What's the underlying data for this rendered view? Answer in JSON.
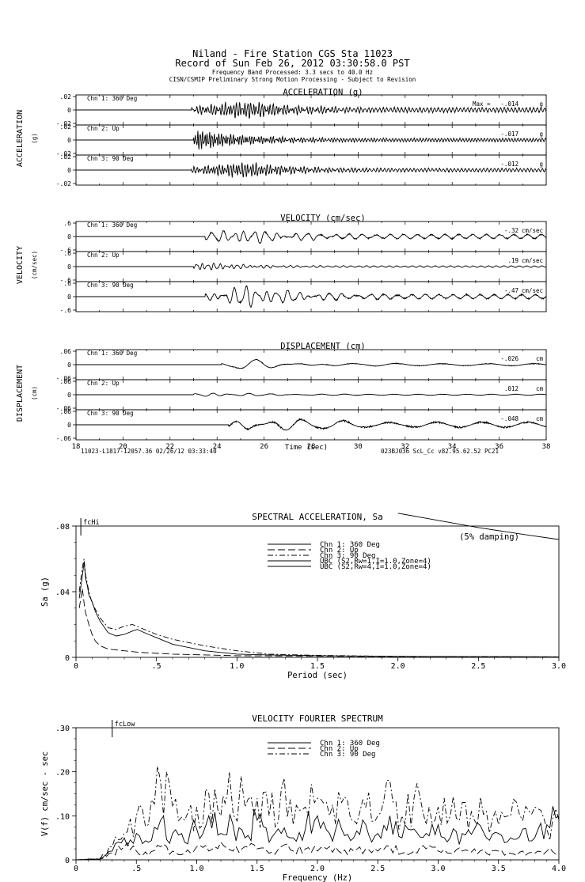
{
  "header": {
    "title_line1": "Niland - Fire Station     CGS Sta 11023",
    "title_line2": "Record of Sun Feb 26, 2012 03:30:58.0 PST",
    "band_line": "Frequency Band Processed: 3.3 secs to 40.0 Hz",
    "processing_line": "CISN/CSMIP Preliminary Strong Motion Processing - Subject to Revision"
  },
  "footer_left": "11023-L1817-12057.36 02/26/12 03:33:40",
  "footer_right": "023BJ036  ScL_Cc  v82.95.62.52  PC21",
  "chart_data": [
    {
      "type": "line",
      "title": "ACCELERATION (g)",
      "ylabel_main": "ACCELERATION",
      "ylabel_unit": "(g)",
      "xlim": [
        18,
        38
      ],
      "x_ticks": [
        18,
        20,
        22,
        24,
        26,
        28,
        30,
        32,
        34,
        36,
        38
      ],
      "unit": "g",
      "max_prefix": "Max =",
      "series": [
        {
          "name": "Chn 1: 360 Deg",
          "max": "-.014",
          "ylim": [
            -0.02,
            0.02
          ],
          "ytick_labels": [
            ".02",
            "0",
            "-.02"
          ],
          "onset": 22.9,
          "peak_t": 25.3,
          "envelope": 0.012,
          "noise": 0.004,
          "dom_period": 0.12
        },
        {
          "name": "Chn 2: Up",
          "max": "-.017",
          "ylim": [
            -0.02,
            0.02
          ],
          "ytick_labels": [
            ".02",
            "0",
            "-.02"
          ],
          "onset": 23.0,
          "peak_t": 23.1,
          "envelope": 0.015,
          "noise": 0.003,
          "dom_period": 0.1
        },
        {
          "name": "Chn 3: 90 Deg",
          "max": "-.012",
          "ylim": [
            -0.02,
            0.02
          ],
          "ytick_labels": [
            ".02",
            "0",
            "-.02"
          ],
          "onset": 22.9,
          "peak_t": 25.2,
          "envelope": 0.011,
          "noise": 0.003,
          "dom_period": 0.12
        }
      ]
    },
    {
      "type": "line",
      "title": "VELOCITY (cm/sec)",
      "ylabel_main": "VELOCITY",
      "ylabel_unit": "(cm/sec)",
      "xlim": [
        18,
        38
      ],
      "unit": "cm/sec",
      "series": [
        {
          "name": "Chn 1: 360 Deg",
          "max": "-.32",
          "ylim": [
            -0.6,
            0.6
          ],
          "ytick_labels": [
            ".6",
            "0",
            "-.6"
          ],
          "onset": 23.5,
          "peak_t": 25.0,
          "envelope": 0.32,
          "noise": 0.12,
          "dom_period": 0.45
        },
        {
          "name": "Chn 2: Up",
          "max": ".19",
          "ylim": [
            -0.6,
            0.6
          ],
          "ytick_labels": [
            ".6",
            "0",
            "-.6"
          ],
          "onset": 23.0,
          "peak_t": 23.1,
          "envelope": 0.19,
          "noise": 0.04,
          "dom_period": 0.25
        },
        {
          "name": "Chn 3: 90 Deg",
          "max": "-.47",
          "ylim": [
            -0.6,
            0.6
          ],
          "ytick_labels": [
            ".6",
            "0",
            "-.6"
          ],
          "onset": 23.5,
          "peak_t": 25.3,
          "envelope": 0.47,
          "noise": 0.12,
          "dom_period": 0.45
        }
      ]
    },
    {
      "type": "line",
      "title": "DISPLACEMENT (cm)",
      "ylabel_main": "DISPLACEMENT",
      "ylabel_unit": "(cm)",
      "xlim": [
        18,
        38
      ],
      "xlabel": "Time (sec)",
      "unit": "cm",
      "series": [
        {
          "name": "Chn 1: 360 Deg",
          "max": "-.026",
          "ylim": [
            -0.06,
            0.06
          ],
          "ytick_labels": [
            ".06",
            "0",
            "-.06"
          ],
          "onset": 24.2,
          "peak_t": 25.0,
          "envelope": 0.026,
          "noise": 0.006,
          "dom_period": 1.5
        },
        {
          "name": "Chn 2: Up",
          "max": ".012",
          "ylim": [
            -0.06,
            0.06
          ],
          "ytick_labels": [
            ".06",
            "0",
            "-.06"
          ],
          "onset": 23.0,
          "peak_t": 23.1,
          "envelope": 0.012,
          "noise": 0.003,
          "dom_period": 0.8
        },
        {
          "name": "Chn 3: 90 Deg",
          "max": "-.048",
          "ylim": [
            -0.06,
            0.06
          ],
          "ytick_labels": [
            ".06",
            "0",
            "-.06"
          ],
          "onset": 24.5,
          "peak_t": 25.3,
          "envelope": 0.048,
          "noise": 0.015,
          "dom_period": 1.5
        }
      ]
    },
    {
      "type": "line",
      "title": "SPECTRAL ACCELERATION, Sa",
      "xlabel": "Period (sec)",
      "ylabel": "Sa (g)",
      "xlim": [
        0,
        3.0
      ],
      "ylim": [
        0,
        0.08
      ],
      "x_ticks": [
        0,
        0.5,
        1.0,
        1.5,
        2.0,
        2.5,
        3.0
      ],
      "x_tick_labels": [
        "0",
        ".5",
        "1.0",
        "1.5",
        "2.0",
        "2.5",
        "3.0"
      ],
      "y_ticks": [
        0,
        0.04,
        0.08
      ],
      "y_tick_labels": [
        "0",
        ".04",
        ".08"
      ],
      "marker_label": "fcHi",
      "marker_x": 0.03,
      "damping_note": "(5% damping)",
      "legend_position": "center",
      "series": [
        {
          "name": "Chn 1: 360 Deg",
          "dash": "solid",
          "x": [
            0.02,
            0.04,
            0.05,
            0.06,
            0.07,
            0.08,
            0.1,
            0.12,
            0.15,
            0.2,
            0.25,
            0.3,
            0.35,
            0.38,
            0.45,
            0.5,
            0.6,
            0.8,
            1.0,
            1.2,
            1.5,
            2.0,
            2.5,
            3.0
          ],
          "y": [
            0.036,
            0.05,
            0.058,
            0.048,
            0.044,
            0.038,
            0.034,
            0.028,
            0.022,
            0.015,
            0.013,
            0.014,
            0.016,
            0.017,
            0.014,
            0.012,
            0.008,
            0.004,
            0.002,
            0.0015,
            0.001,
            0.0006,
            0.0004,
            0.0003
          ]
        },
        {
          "name": "Chn 2: Up",
          "dash": "longdash",
          "x": [
            0.02,
            0.04,
            0.05,
            0.06,
            0.08,
            0.1,
            0.12,
            0.15,
            0.2,
            0.3,
            0.4,
            0.6,
            0.8,
            1.0,
            1.5,
            2.0,
            3.0
          ],
          "y": [
            0.03,
            0.042,
            0.033,
            0.027,
            0.02,
            0.014,
            0.01,
            0.007,
            0.005,
            0.004,
            0.003,
            0.002,
            0.0015,
            0.001,
            0.0007,
            0.0005,
            0.0003
          ]
        },
        {
          "name": "Chn 3: 90 Deg",
          "dash": "dashdot",
          "x": [
            0.02,
            0.04,
            0.05,
            0.06,
            0.08,
            0.1,
            0.15,
            0.2,
            0.25,
            0.3,
            0.35,
            0.4,
            0.5,
            0.6,
            0.8,
            1.0,
            1.2,
            1.5,
            2.0,
            3.0
          ],
          "y": [
            0.04,
            0.055,
            0.06,
            0.05,
            0.04,
            0.033,
            0.024,
            0.018,
            0.017,
            0.019,
            0.02,
            0.018,
            0.014,
            0.011,
            0.007,
            0.004,
            0.002,
            0.0012,
            0.0006,
            0.0003
          ]
        },
        {
          "name": "UBC (S2,Rw=1,I=1.0,Zone=4)",
          "dash": "solid",
          "x": [
            2.0,
            2.2,
            2.5,
            2.8,
            3.0
          ],
          "y": [
            0.0878,
            0.0843,
            0.0791,
            0.0746,
            0.0718
          ]
        },
        {
          "name": "UBC (S2,Rw=4,I=1.0,Zone=4)",
          "dash": "solid",
          "x": [],
          "y": []
        }
      ]
    },
    {
      "type": "line",
      "title": "VELOCITY FOURIER SPECTRUM",
      "xlabel": "Frequency (Hz)",
      "ylabel": "V(f)   cm/sec - sec",
      "xlim": [
        0,
        4.0
      ],
      "ylim": [
        0,
        0.3
      ],
      "x_ticks": [
        0,
        0.5,
        1.0,
        1.5,
        2.0,
        2.5,
        3.0,
        3.5,
        4.0
      ],
      "x_tick_labels": [
        "0",
        ".5",
        "1.0",
        "1.5",
        "2.0",
        "2.5",
        "3.0",
        "3.5",
        "4.0"
      ],
      "y_ticks": [
        0,
        0.1,
        0.2,
        0.3
      ],
      "y_tick_labels": [
        "0",
        ".10",
        ".20",
        ".30"
      ],
      "marker_label": "fcLow",
      "marker_x": 0.3,
      "legend_position": "top-center",
      "series": [
        {
          "name": "Chn 1: 360 Deg",
          "dash": "solid",
          "x": [
            0,
            0.2,
            0.3,
            0.4,
            0.5,
            0.6,
            0.7,
            0.8,
            0.9,
            1.0,
            1.1,
            1.2,
            1.3,
            1.4,
            1.5,
            1.6,
            1.7,
            1.8,
            1.9,
            2.0,
            2.1,
            2.2,
            2.3,
            2.4,
            2.5,
            2.6,
            2.7,
            2.8,
            2.9,
            3.0,
            3.1,
            3.2,
            3.3,
            3.4,
            3.5,
            3.6,
            3.7,
            3.8,
            3.9,
            4.0
          ],
          "y": [
            0,
            0.002,
            0.02,
            0.05,
            0.06,
            0.04,
            0.09,
            0.06,
            0.04,
            0.07,
            0.1,
            0.06,
            0.08,
            0.05,
            0.09,
            0.04,
            0.06,
            0.05,
            0.07,
            0.1,
            0.06,
            0.07,
            0.05,
            0.08,
            0.06,
            0.1,
            0.05,
            0.07,
            0.06,
            0.08,
            0.05,
            0.06,
            0.07,
            0.05,
            0.06,
            0.05,
            0.07,
            0.05,
            0.08,
            0.1
          ]
        },
        {
          "name": "Chn 2: Up",
          "dash": "longdash",
          "x": [
            0,
            0.2,
            0.3,
            0.4,
            0.5,
            0.6,
            0.7,
            0.8,
            0.9,
            1.0,
            1.1,
            1.2,
            1.3,
            1.4,
            1.5,
            1.6,
            1.7,
            1.8,
            1.9,
            2.0,
            2.1,
            2.2,
            2.3,
            2.4,
            2.5,
            2.6,
            2.7,
            2.8,
            2.9,
            3.0,
            3.1,
            3.2,
            3.3,
            3.4,
            3.5,
            3.6,
            3.7,
            3.8,
            3.9,
            4.0
          ],
          "y": [
            0,
            0.002,
            0.015,
            0.03,
            0.02,
            0.01,
            0.03,
            0.02,
            0.015,
            0.03,
            0.02,
            0.04,
            0.02,
            0.03,
            0.025,
            0.015,
            0.03,
            0.02,
            0.025,
            0.02,
            0.03,
            0.015,
            0.02,
            0.025,
            0.02,
            0.03,
            0.015,
            0.02,
            0.025,
            0.02,
            0.015,
            0.02,
            0.025,
            0.015,
            0.02,
            0.015,
            0.02,
            0.015,
            0.02,
            0.015
          ]
        },
        {
          "name": "Chn 3: 90 Deg",
          "dash": "dashdot",
          "x": [
            0,
            0.2,
            0.3,
            0.4,
            0.5,
            0.6,
            0.7,
            0.8,
            0.9,
            1.0,
            1.1,
            1.2,
            1.27,
            1.4,
            1.5,
            1.6,
            1.7,
            1.8,
            1.9,
            2.0,
            2.1,
            2.2,
            2.3,
            2.4,
            2.5,
            2.6,
            2.7,
            2.8,
            2.9,
            3.0,
            3.1,
            3.2,
            3.3,
            3.4,
            3.5,
            3.6,
            3.7,
            3.8,
            3.9,
            4.0
          ],
          "y": [
            0,
            0.003,
            0.03,
            0.06,
            0.1,
            0.08,
            0.18,
            0.12,
            0.09,
            0.12,
            0.15,
            0.1,
            0.2,
            0.12,
            0.14,
            0.1,
            0.16,
            0.08,
            0.12,
            0.14,
            0.1,
            0.13,
            0.09,
            0.12,
            0.1,
            0.18,
            0.1,
            0.14,
            0.08,
            0.12,
            0.1,
            0.13,
            0.09,
            0.11,
            0.08,
            0.1,
            0.09,
            0.12,
            0.07,
            0.09
          ]
        }
      ]
    }
  ]
}
